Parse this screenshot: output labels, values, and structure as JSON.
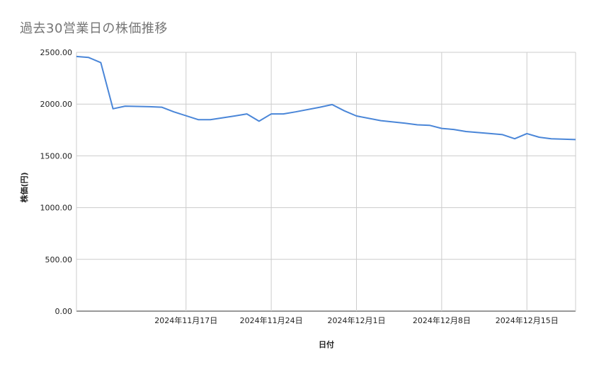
{
  "chart_data": {
    "type": "line",
    "title": "過去30営業日の株価推移",
    "xlabel": "日付",
    "ylabel": "株価(円)",
    "ylim": [
      0,
      2500
    ],
    "yticks": [
      "0.00",
      "500.00",
      "1000.00",
      "1500.00",
      "2000.00",
      "2500.00"
    ],
    "ytick_values": [
      0,
      500,
      1000,
      1500,
      2000,
      2500
    ],
    "xlim": [
      "2024-11-08",
      "2024-12-19"
    ],
    "xticks": [
      "2024年11月17日",
      "2024年11月24日",
      "2024年12月1日",
      "2024年12月8日",
      "2024年12月15日"
    ],
    "xtick_dates": [
      "2024-11-17",
      "2024-11-24",
      "2024-12-01",
      "2024-12-08",
      "2024-12-15"
    ],
    "grid": true,
    "line_color": "#4a86d8",
    "series": [
      {
        "x": [
          "2024-11-08",
          "2024-11-09",
          "2024-11-10",
          "2024-11-11",
          "2024-11-12",
          "2024-11-13",
          "2024-11-14",
          "2024-11-15",
          "2024-11-16",
          "2024-11-17",
          "2024-11-18",
          "2024-11-19",
          "2024-11-20",
          "2024-11-21",
          "2024-11-22",
          "2024-11-23",
          "2024-11-24",
          "2024-11-25",
          "2024-11-26",
          "2024-11-27",
          "2024-11-28",
          "2024-11-29",
          "2024-11-30",
          "2024-12-01",
          "2024-12-02",
          "2024-12-03",
          "2024-12-04",
          "2024-12-05",
          "2024-12-06",
          "2024-12-07",
          "2024-12-08",
          "2024-12-09",
          "2024-12-10",
          "2024-12-11",
          "2024-12-12",
          "2024-12-13",
          "2024-12-14",
          "2024-12-15",
          "2024-12-16",
          "2024-12-17",
          "2024-12-18",
          "2024-12-19"
        ],
        "values": [
          2460,
          2450,
          2400,
          1955,
          1980,
          null,
          1975,
          1970,
          1925,
          null,
          1850,
          1850,
          null,
          1885,
          1905,
          1835,
          1905,
          1905,
          1925,
          null,
          1970,
          1995,
          1935,
          1885,
          null,
          1840,
          null,
          1815,
          1800,
          1795,
          1765,
          1755,
          1735,
          null,
          1715,
          1705,
          1665,
          1715,
          1680,
          1665,
          null,
          null
        ]
      }
    ]
  }
}
